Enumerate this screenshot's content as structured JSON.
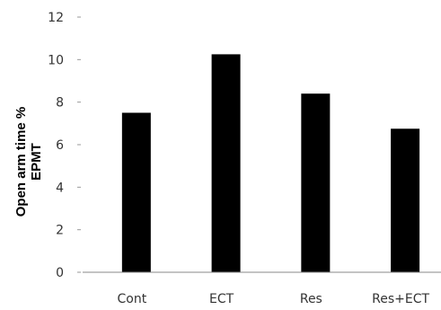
{
  "chart_data": {
    "type": "bar",
    "title": "",
    "xlabel": "",
    "ylabel_lines": [
      "Open arm time %",
      "EPMT"
    ],
    "ylim": [
      0,
      12
    ],
    "yticks": [
      "0",
      "2",
      "4",
      "6",
      "8",
      "10",
      "12"
    ],
    "categories": [
      "Cont",
      "ECT",
      "Res",
      "Res+ECT"
    ],
    "values": [
      7.5,
      10.25,
      8.4,
      6.75
    ],
    "bar_color": "#000000",
    "grid": false,
    "legend": "none"
  }
}
